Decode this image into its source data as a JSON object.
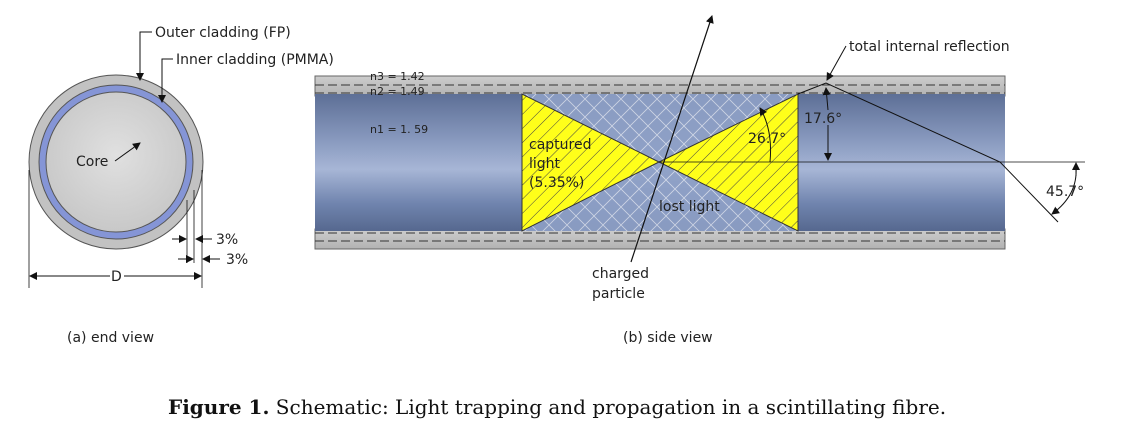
{
  "end_view": {
    "outer_cladding_label": "Outer cladding (FP)",
    "inner_cladding_label": "Inner cladding (PMMA)",
    "core_label": "Core",
    "dim_outer": "3%",
    "dim_inner": "3%",
    "diameter_label": "D",
    "caption": "(a) end view"
  },
  "side_view": {
    "n3": "n3 = 1.42",
    "n2": "n2 = 1.49",
    "n1": "n1 = 1. 59",
    "tir_label": "total internal reflection",
    "captured_line1": "captured",
    "captured_line2": "light",
    "captured_line3": "(5.35%)",
    "lost_label": "lost light",
    "angle_cone": "26.7°",
    "angle_tir": "17.6°",
    "angle_exit": "45.7°",
    "particle_line1": "charged",
    "particle_line2": "particle",
    "caption": "(b) side view"
  },
  "figure": {
    "label": "Figure 1.",
    "text": " Schematic: Light trapping and propagation in a scintillating fibre."
  }
}
